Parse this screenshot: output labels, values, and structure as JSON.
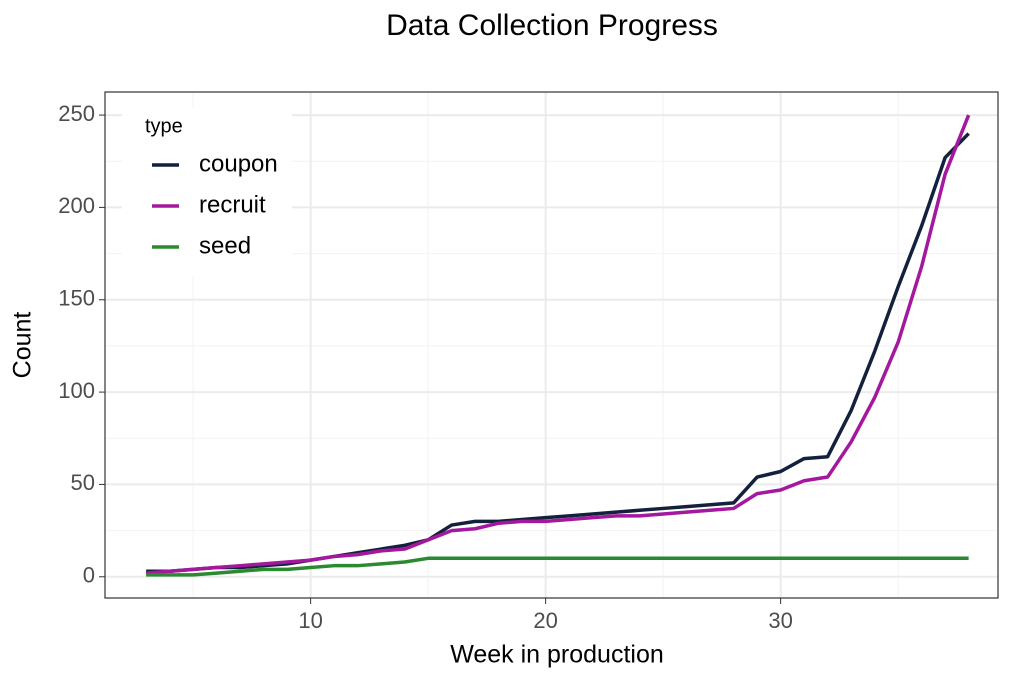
{
  "chart_data": {
    "type": "line",
    "title": "Data Collection Progress",
    "x_label": "Week in production",
    "y_label": "Count",
    "legend_title": "type",
    "legend_position": "top-left",
    "grid": true,
    "x": [
      3,
      4,
      5,
      6,
      7,
      8,
      9,
      10,
      11,
      12,
      13,
      14,
      15,
      16,
      17,
      18,
      19,
      20,
      21,
      22,
      23,
      24,
      25,
      26,
      27,
      28,
      29,
      30,
      31,
      32,
      33,
      34,
      35,
      36,
      37,
      38
    ],
    "series": [
      {
        "name": "coupon",
        "color": "#14213d",
        "values": [
          3,
          3,
          4,
          5,
          5,
          6,
          7,
          9,
          11,
          13,
          15,
          17,
          20,
          28,
          30,
          30,
          31,
          32,
          33,
          34,
          35,
          36,
          37,
          38,
          39,
          40,
          54,
          57,
          64,
          65,
          90,
          122,
          157,
          190,
          227,
          240
        ]
      },
      {
        "name": "recruit",
        "color": "#a4189e",
        "values": [
          2,
          3,
          4,
          5,
          6,
          7,
          8,
          9,
          11,
          12,
          14,
          15,
          20,
          25,
          26,
          29,
          30,
          30,
          31,
          32,
          33,
          33,
          34,
          35,
          36,
          37,
          45,
          47,
          52,
          54,
          73,
          97,
          127,
          168,
          218,
          250
        ]
      },
      {
        "name": "seed",
        "color": "#2b8a30",
        "values": [
          1,
          1,
          1,
          2,
          3,
          4,
          4,
          5,
          6,
          6,
          7,
          8,
          10,
          10,
          10,
          10,
          10,
          10,
          10,
          10,
          10,
          10,
          10,
          10,
          10,
          10,
          10,
          10,
          10,
          10,
          10,
          10,
          10,
          10,
          10,
          10
        ]
      }
    ],
    "xlim": [
      1.25,
      39.25
    ],
    "ylim": [
      -11.5,
      262.5
    ],
    "xticks": [
      10,
      20,
      30
    ],
    "yticks": [
      0,
      50,
      100,
      150,
      200,
      250
    ],
    "xminor": [
      5,
      15,
      25,
      35
    ],
    "yminor": [
      25,
      75,
      125,
      175,
      225
    ]
  }
}
